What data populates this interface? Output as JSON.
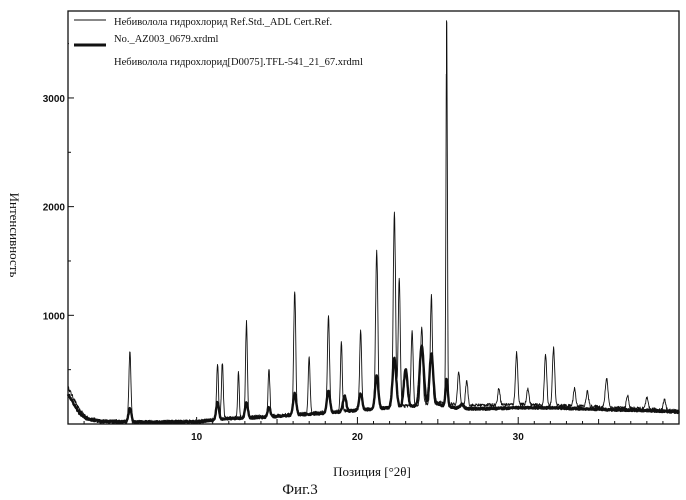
{
  "chart_data": {
    "type": "line",
    "title": "",
    "xlabel": "Позиция [°2θ]",
    "ylabel": "Интенсивность",
    "xlim": [
      2,
      40
    ],
    "ylim": [
      0,
      3800
    ],
    "x_ticks": [
      10,
      20,
      30
    ],
    "x_tick_labels": [
      "10",
      "20",
      "30"
    ],
    "y_ticks": [
      1000,
      2000,
      3000
    ],
    "y_tick_labels": [
      "1000",
      "2000",
      "3000"
    ],
    "grid": false,
    "legend_position": "top-left",
    "caption": "Фиг.3",
    "series": [
      {
        "name": "Небиволола гидрохлорид Ref.Std._ADL Cert.Ref. No._AZ003_0679.xrdml",
        "legend_lines": [
          "Небиволола гидрохлорид Ref.Std._ADL Cert.Ref.",
          "No._AZ003_0679.xrdml"
        ],
        "style": "thin",
        "baseline": [
          [
            2.0,
            340
          ],
          [
            2.3,
            250
          ],
          [
            2.7,
            130
          ],
          [
            3.2,
            60
          ],
          [
            4.0,
            30
          ],
          [
            6.0,
            20
          ],
          [
            10.0,
            25
          ],
          [
            11.0,
            40
          ],
          [
            12.0,
            55
          ],
          [
            14.0,
            70
          ],
          [
            16.0,
            90
          ],
          [
            18.0,
            110
          ],
          [
            20.0,
            130
          ],
          [
            22.0,
            150
          ],
          [
            24.0,
            180
          ],
          [
            25.0,
            200
          ],
          [
            26.0,
            180
          ],
          [
            27.0,
            170
          ],
          [
            28.0,
            175
          ],
          [
            30.0,
            180
          ],
          [
            32.0,
            170
          ],
          [
            34.0,
            165
          ],
          [
            36.0,
            150
          ],
          [
            38.0,
            140
          ],
          [
            40.0,
            120
          ]
        ],
        "peaks": [
          {
            "x": 5.85,
            "y": 660,
            "w": 0.09
          },
          {
            "x": 11.3,
            "y": 560,
            "w": 0.08
          },
          {
            "x": 11.6,
            "y": 560,
            "w": 0.08
          },
          {
            "x": 12.6,
            "y": 470,
            "w": 0.07
          },
          {
            "x": 13.1,
            "y": 940,
            "w": 0.08
          },
          {
            "x": 14.5,
            "y": 500,
            "w": 0.08
          },
          {
            "x": 16.1,
            "y": 1230,
            "w": 0.09
          },
          {
            "x": 17.0,
            "y": 620,
            "w": 0.08
          },
          {
            "x": 18.2,
            "y": 1000,
            "w": 0.09
          },
          {
            "x": 19.0,
            "y": 750,
            "w": 0.08
          },
          {
            "x": 20.2,
            "y": 850,
            "w": 0.09
          },
          {
            "x": 21.2,
            "y": 1600,
            "w": 0.1
          },
          {
            "x": 22.3,
            "y": 1960,
            "w": 0.1
          },
          {
            "x": 22.6,
            "y": 1350,
            "w": 0.09
          },
          {
            "x": 23.4,
            "y": 850,
            "w": 0.09
          },
          {
            "x": 24.0,
            "y": 900,
            "w": 0.1
          },
          {
            "x": 24.6,
            "y": 1180,
            "w": 0.09
          },
          {
            "x": 25.55,
            "y": 3800,
            "w": 0.06
          },
          {
            "x": 26.3,
            "y": 480,
            "w": 0.1
          },
          {
            "x": 26.8,
            "y": 400,
            "w": 0.1
          },
          {
            "x": 28.8,
            "y": 330,
            "w": 0.1
          },
          {
            "x": 29.9,
            "y": 660,
            "w": 0.1
          },
          {
            "x": 30.6,
            "y": 330,
            "w": 0.1
          },
          {
            "x": 31.7,
            "y": 640,
            "w": 0.1
          },
          {
            "x": 32.2,
            "y": 700,
            "w": 0.1
          },
          {
            "x": 33.5,
            "y": 330,
            "w": 0.1
          },
          {
            "x": 34.3,
            "y": 300,
            "w": 0.1
          },
          {
            "x": 35.5,
            "y": 420,
            "w": 0.12
          },
          {
            "x": 36.8,
            "y": 260,
            "w": 0.1
          },
          {
            "x": 38.0,
            "y": 240,
            "w": 0.1
          },
          {
            "x": 39.1,
            "y": 230,
            "w": 0.1
          }
        ]
      },
      {
        "name": "Небиволола гидрохлорид[D0075].TFL-541_21_67.xrdml",
        "legend_lines": [
          "Небиволола гидрохлорид[D0075].TFL-541_21_67.xrdml"
        ],
        "style": "thick",
        "baseline": [
          [
            2.0,
            280
          ],
          [
            2.3,
            200
          ],
          [
            2.7,
            100
          ],
          [
            3.2,
            45
          ],
          [
            4.0,
            25
          ],
          [
            6.0,
            18
          ],
          [
            10.0,
            20
          ],
          [
            11.0,
            35
          ],
          [
            12.0,
            50
          ],
          [
            14.0,
            60
          ],
          [
            16.0,
            80
          ],
          [
            18.0,
            100
          ],
          [
            20.0,
            125
          ],
          [
            22.0,
            150
          ],
          [
            24.0,
            170
          ],
          [
            25.0,
            180
          ],
          [
            26.0,
            150
          ],
          [
            27.0,
            140
          ],
          [
            28.0,
            140
          ],
          [
            30.0,
            150
          ],
          [
            32.0,
            150
          ],
          [
            34.0,
            140
          ],
          [
            36.0,
            130
          ],
          [
            38.0,
            125
          ],
          [
            40.0,
            110
          ]
        ],
        "peaks": [
          {
            "x": 5.85,
            "y": 150,
            "w": 0.12
          },
          {
            "x": 11.3,
            "y": 200,
            "w": 0.12
          },
          {
            "x": 13.1,
            "y": 200,
            "w": 0.12
          },
          {
            "x": 14.5,
            "y": 150,
            "w": 0.12
          },
          {
            "x": 16.1,
            "y": 280,
            "w": 0.14
          },
          {
            "x": 18.2,
            "y": 300,
            "w": 0.14
          },
          {
            "x": 19.2,
            "y": 260,
            "w": 0.14
          },
          {
            "x": 20.2,
            "y": 280,
            "w": 0.14
          },
          {
            "x": 21.2,
            "y": 450,
            "w": 0.14
          },
          {
            "x": 22.3,
            "y": 600,
            "w": 0.16
          },
          {
            "x": 23.0,
            "y": 500,
            "w": 0.16
          },
          {
            "x": 24.0,
            "y": 720,
            "w": 0.18
          },
          {
            "x": 24.6,
            "y": 650,
            "w": 0.16
          },
          {
            "x": 25.55,
            "y": 420,
            "w": 0.1
          },
          {
            "x": 26.5,
            "y": 180,
            "w": 0.15
          },
          {
            "x": 28.0,
            "y": 140,
            "w": 0.18
          },
          {
            "x": 31.0,
            "y": 110,
            "w": 0.2
          },
          {
            "x": 35.5,
            "y": 100,
            "w": 0.2
          }
        ]
      }
    ]
  }
}
